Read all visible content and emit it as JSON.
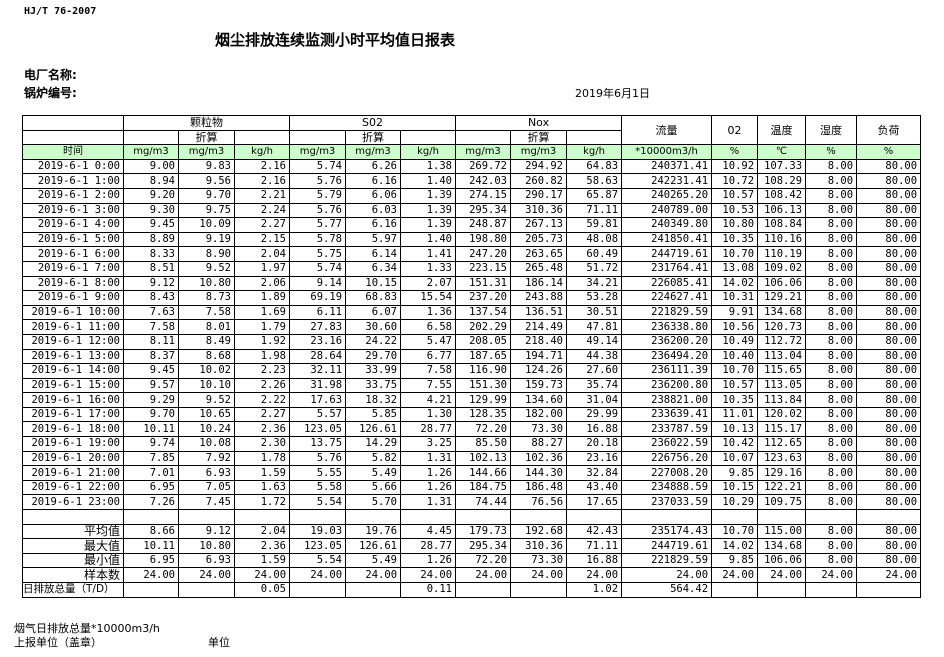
{
  "header": {
    "standard": "HJ/T  76-2007",
    "title": "烟尘排放连续监测小时平均值日报表",
    "plant_label": "电厂名称:",
    "boiler_label": "锅炉编号:",
    "date": "2019年6月1日"
  },
  "table": {
    "groups": [
      "颗粒物",
      "S02",
      "Nox"
    ],
    "converted": "折算",
    "single_headers": [
      "流量",
      "02",
      "温度",
      "湿度",
      "负荷"
    ],
    "time_label": "时间",
    "units": [
      "mg/m3",
      "mg/m3",
      "kg/h",
      "mg/m3",
      "mg/m3",
      "kg/h",
      "mg/m3",
      "mg/m3",
      "kg/h",
      "*10000m3/h",
      "%",
      "℃",
      "%",
      "%"
    ],
    "rows": [
      [
        "2019-6-1 0:00",
        "9.00",
        "9.83",
        "2.16",
        "5.74",
        "6.26",
        "1.38",
        "269.72",
        "294.92",
        "64.83",
        "240371.41",
        "10.92",
        "107.33",
        "8.00",
        "80.00"
      ],
      [
        "2019-6-1 1:00",
        "8.94",
        "9.56",
        "2.16",
        "5.76",
        "6.16",
        "1.40",
        "242.03",
        "260.82",
        "58.63",
        "242231.41",
        "10.72",
        "108.29",
        "8.00",
        "80.00"
      ],
      [
        "2019-6-1 2:00",
        "9.20",
        "9.70",
        "2.21",
        "5.79",
        "6.06",
        "1.39",
        "274.15",
        "290.17",
        "65.87",
        "240265.20",
        "10.57",
        "108.42",
        "8.00",
        "80.00"
      ],
      [
        "2019-6-1 3:00",
        "9.30",
        "9.75",
        "2.24",
        "5.76",
        "6.03",
        "1.39",
        "295.34",
        "310.36",
        "71.11",
        "240789.00",
        "10.53",
        "106.13",
        "8.00",
        "80.00"
      ],
      [
        "2019-6-1 4:00",
        "9.45",
        "10.09",
        "2.27",
        "5.77",
        "6.16",
        "1.39",
        "248.87",
        "267.13",
        "59.81",
        "240349.80",
        "10.80",
        "108.84",
        "8.00",
        "80.00"
      ],
      [
        "2019-6-1 5:00",
        "8.89",
        "9.19",
        "2.15",
        "5.78",
        "5.97",
        "1.40",
        "198.80",
        "205.73",
        "48.08",
        "241850.41",
        "10.35",
        "110.16",
        "8.00",
        "80.00"
      ],
      [
        "2019-6-1 6:00",
        "8.33",
        "8.90",
        "2.04",
        "5.75",
        "6.14",
        "1.41",
        "247.20",
        "263.65",
        "60.49",
        "244719.61",
        "10.70",
        "110.19",
        "8.00",
        "80.00"
      ],
      [
        "2019-6-1 7:00",
        "8.51",
        "9.52",
        "1.97",
        "5.74",
        "6.34",
        "1.33",
        "223.15",
        "265.48",
        "51.72",
        "231764.41",
        "13.08",
        "109.02",
        "8.00",
        "80.00"
      ],
      [
        "2019-6-1 8:00",
        "9.12",
        "10.80",
        "2.06",
        "9.14",
        "10.15",
        "2.07",
        "151.31",
        "186.14",
        "34.21",
        "226085.41",
        "14.02",
        "106.06",
        "8.00",
        "80.00"
      ],
      [
        "2019-6-1 9:00",
        "8.43",
        "8.73",
        "1.89",
        "69.19",
        "68.83",
        "15.54",
        "237.20",
        "243.88",
        "53.28",
        "224627.41",
        "10.31",
        "129.21",
        "8.00",
        "80.00"
      ],
      [
        "2019-6-1 10:00",
        "7.63",
        "7.58",
        "1.69",
        "6.11",
        "6.07",
        "1.36",
        "137.54",
        "136.51",
        "30.51",
        "221829.59",
        "9.91",
        "134.68",
        "8.00",
        "80.00"
      ],
      [
        "2019-6-1 11:00",
        "7.58",
        "8.01",
        "1.79",
        "27.83",
        "30.60",
        "6.58",
        "202.29",
        "214.49",
        "47.81",
        "236338.80",
        "10.56",
        "120.73",
        "8.00",
        "80.00"
      ],
      [
        "2019-6-1 12:00",
        "8.11",
        "8.49",
        "1.92",
        "23.16",
        "24.22",
        "5.47",
        "208.05",
        "218.40",
        "49.14",
        "236200.20",
        "10.49",
        "112.72",
        "8.00",
        "80.00"
      ],
      [
        "2019-6-1 13:00",
        "8.37",
        "8.68",
        "1.98",
        "28.64",
        "29.70",
        "6.77",
        "187.65",
        "194.71",
        "44.38",
        "236494.20",
        "10.40",
        "113.04",
        "8.00",
        "80.00"
      ],
      [
        "2019-6-1 14:00",
        "9.45",
        "10.02",
        "2.23",
        "32.11",
        "33.99",
        "7.58",
        "116.90",
        "124.26",
        "27.60",
        "236111.39",
        "10.70",
        "115.65",
        "8.00",
        "80.00"
      ],
      [
        "2019-6-1 15:00",
        "9.57",
        "10.10",
        "2.26",
        "31.98",
        "33.75",
        "7.55",
        "151.30",
        "159.73",
        "35.74",
        "236200.80",
        "10.57",
        "113.05",
        "8.00",
        "80.00"
      ],
      [
        "2019-6-1 16:00",
        "9.29",
        "9.52",
        "2.22",
        "17.63",
        "18.32",
        "4.21",
        "129.99",
        "134.60",
        "31.04",
        "238821.00",
        "10.35",
        "113.84",
        "8.00",
        "80.00"
      ],
      [
        "2019-6-1 17:00",
        "9.70",
        "10.65",
        "2.27",
        "5.57",
        "5.85",
        "1.30",
        "128.35",
        "182.00",
        "29.99",
        "233639.41",
        "11.01",
        "120.02",
        "8.00",
        "80.00"
      ],
      [
        "2019-6-1 18:00",
        "10.11",
        "10.24",
        "2.36",
        "123.05",
        "126.61",
        "28.77",
        "72.20",
        "73.30",
        "16.88",
        "233787.59",
        "10.13",
        "115.17",
        "8.00",
        "80.00"
      ],
      [
        "2019-6-1 19:00",
        "9.74",
        "10.08",
        "2.30",
        "13.75",
        "14.29",
        "3.25",
        "85.50",
        "88.27",
        "20.18",
        "236022.59",
        "10.42",
        "112.65",
        "8.00",
        "80.00"
      ],
      [
        "2019-6-1 20:00",
        "7.85",
        "7.92",
        "1.78",
        "5.76",
        "5.82",
        "1.31",
        "102.13",
        "102.36",
        "23.16",
        "226756.20",
        "10.07",
        "123.63",
        "8.00",
        "80.00"
      ],
      [
        "2019-6-1 21:00",
        "7.01",
        "6.93",
        "1.59",
        "5.55",
        "5.49",
        "1.26",
        "144.66",
        "144.30",
        "32.84",
        "227008.20",
        "9.85",
        "129.16",
        "8.00",
        "80.00"
      ],
      [
        "2019-6-1 22:00",
        "6.95",
        "7.05",
        "1.63",
        "5.58",
        "5.66",
        "1.26",
        "184.75",
        "186.48",
        "43.40",
        "234888.59",
        "10.15",
        "122.21",
        "8.00",
        "80.00"
      ],
      [
        "2019-6-1 23:00",
        "7.26",
        "7.45",
        "1.72",
        "5.54",
        "5.70",
        "1.31",
        "74.44",
        "76.56",
        "17.65",
        "237033.59",
        "10.29",
        "109.75",
        "8.00",
        "80.00"
      ]
    ],
    "summary": [
      [
        "平均值",
        "8.66",
        "9.12",
        "2.04",
        "19.03",
        "19.76",
        "4.45",
        "179.73",
        "192.68",
        "42.43",
        "235174.43",
        "10.70",
        "115.00",
        "8.00",
        "80.00"
      ],
      [
        "最大值",
        "10.11",
        "10.80",
        "2.36",
        "123.05",
        "126.61",
        "28.77",
        "295.34",
        "310.36",
        "71.11",
        "244719.61",
        "14.02",
        "134.68",
        "8.00",
        "80.00"
      ],
      [
        "最小值",
        "6.95",
        "6.93",
        "1.59",
        "5.54",
        "5.49",
        "1.26",
        "72.20",
        "73.30",
        "16.88",
        "221829.59",
        "9.85",
        "106.06",
        "8.00",
        "80.00"
      ],
      [
        "样本数",
        "24.00",
        "24.00",
        "24.00",
        "24.00",
        "24.00",
        "24.00",
        "24.00",
        "24.00",
        "24.00",
        "24.00",
        "24.00",
        "24.00",
        "24.00",
        "24.00"
      ]
    ],
    "daily_total": [
      "日排放总量（T/D）",
      null,
      null,
      "0.05",
      null,
      null,
      "0.11",
      null,
      null,
      "1.02",
      "564.42",
      null,
      null,
      null,
      null
    ]
  },
  "footer": {
    "flow_total": "烟气日排放总量*10000m3/h",
    "reporter": "上报单位（盖章）",
    "unit": "单位"
  }
}
